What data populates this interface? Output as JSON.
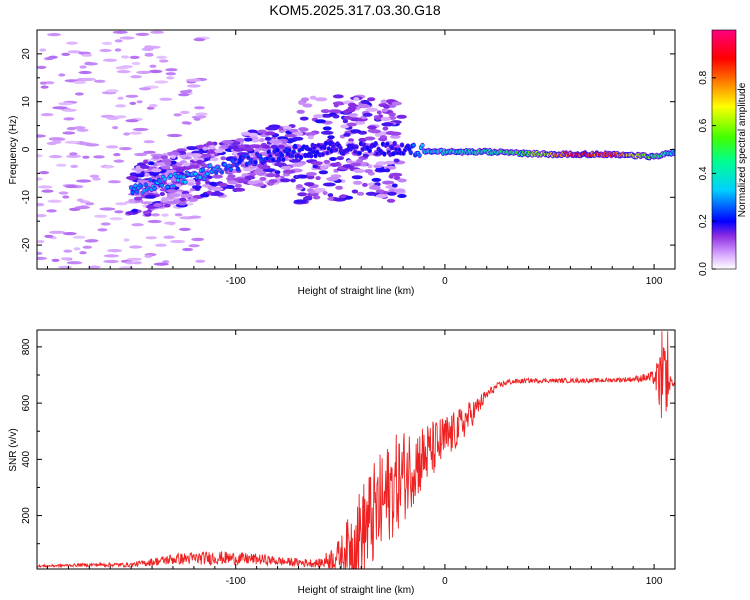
{
  "figure_title": "KOM5.2025.317.03.30.G18",
  "chart_data": [
    {
      "type": "heatmap",
      "title": "KOM5.2025.317.03.30.G18",
      "xlabel": "Height of straight line (km)",
      "ylabel": "Frequency (Hz)",
      "xlim": [
        -195,
        110
      ],
      "ylim": [
        -25,
        25
      ],
      "xticks": [
        -100,
        0,
        100
      ],
      "xtick_labels": [
        "-100",
        "0",
        "100"
      ],
      "yticks": [
        -20,
        -10,
        0,
        10,
        20
      ],
      "ytick_labels": [
        "-20",
        "-10",
        "0",
        "10",
        "20"
      ],
      "colorbar": {
        "label": "Normalized spectral amplitude",
        "range": [
          0,
          1
        ],
        "ticks": [
          0.0,
          0.2,
          0.4,
          0.6,
          0.8
        ],
        "tick_labels": [
          "0.0",
          "0.2",
          "0.4",
          "0.6",
          "0.8"
        ],
        "colormap": [
          "#e8c4ff",
          "#7b00ff",
          "#0000ff",
          "#00c8ff",
          "#00ff80",
          "#aaff00",
          "#ffe000",
          "#ff8000",
          "#ff0000",
          "#ff0080"
        ]
      },
      "ridge": {
        "description_points_km_hz": [
          [
            -145,
            -8
          ],
          [
            -120,
            -5.5
          ],
          [
            -100,
            -3
          ],
          [
            -80,
            -1
          ],
          [
            -60,
            0
          ],
          [
            -40,
            0.5
          ],
          [
            -20,
            0
          ],
          [
            0,
            -0.5
          ],
          [
            20,
            -0.5
          ],
          [
            50,
            -1
          ],
          [
            80,
            -1
          ],
          [
            100,
            -1.5
          ],
          [
            110,
            -0.5
          ]
        ],
        "amplitude_points": [
          [
            -145,
            0.3
          ],
          [
            -120,
            0.35
          ],
          [
            -100,
            0.25
          ],
          [
            -60,
            0.2
          ],
          [
            -20,
            0.2
          ],
          [
            -10,
            0.35
          ],
          [
            0,
            0.4
          ],
          [
            20,
            0.45
          ],
          [
            40,
            0.55
          ],
          [
            50,
            0.7
          ],
          [
            60,
            0.9
          ],
          [
            80,
            0.88
          ],
          [
            95,
            0.6
          ],
          [
            105,
            0.45
          ],
          [
            110,
            0.3
          ]
        ]
      }
    },
    {
      "type": "line",
      "xlabel": "Height of straight line (km)",
      "ylabel": "SNR (v/v)",
      "xlim": [
        -195,
        110
      ],
      "ylim": [
        10,
        860
      ],
      "xticks": [
        -100,
        0,
        100
      ],
      "xtick_labels": [
        "-100",
        "0",
        "100"
      ],
      "yticks": [
        200,
        400,
        600,
        800
      ],
      "ytick_labels": [
        "200",
        "400",
        "600",
        "800"
      ],
      "series": [
        {
          "name": "SNR",
          "color": "#ee2222",
          "envelope": {
            "x": [
              -195,
              -170,
              -150,
              -130,
              -110,
              -90,
              -75,
              -60,
              -50,
              -45,
              -40,
              -35,
              -30,
              -25,
              -20,
              -15,
              -10,
              -5,
              0,
              5,
              10,
              15,
              20,
              25,
              30,
              40,
              50,
              60,
              70,
              80,
              90,
              95,
              100,
              103,
              105,
              107,
              110
            ],
            "base": [
              20,
              25,
              25,
              45,
              50,
              45,
              35,
              30,
              60,
              100,
              140,
              190,
              240,
              300,
              340,
              380,
              410,
              440,
              470,
              500,
              540,
              580,
              630,
              660,
              675,
              680,
              680,
              680,
              680,
              682,
              685,
              690,
              690,
              670,
              650,
              670,
              675
            ],
            "spread": [
              4,
              6,
              8,
              20,
              25,
              20,
              15,
              15,
              60,
              120,
              170,
              190,
              190,
              180,
              170,
              140,
              120,
              100,
              90,
              70,
              60,
              40,
              20,
              12,
              10,
              8,
              8,
              8,
              8,
              8,
              10,
              15,
              25,
              120,
              180,
              30,
              10
            ]
          }
        }
      ]
    }
  ]
}
